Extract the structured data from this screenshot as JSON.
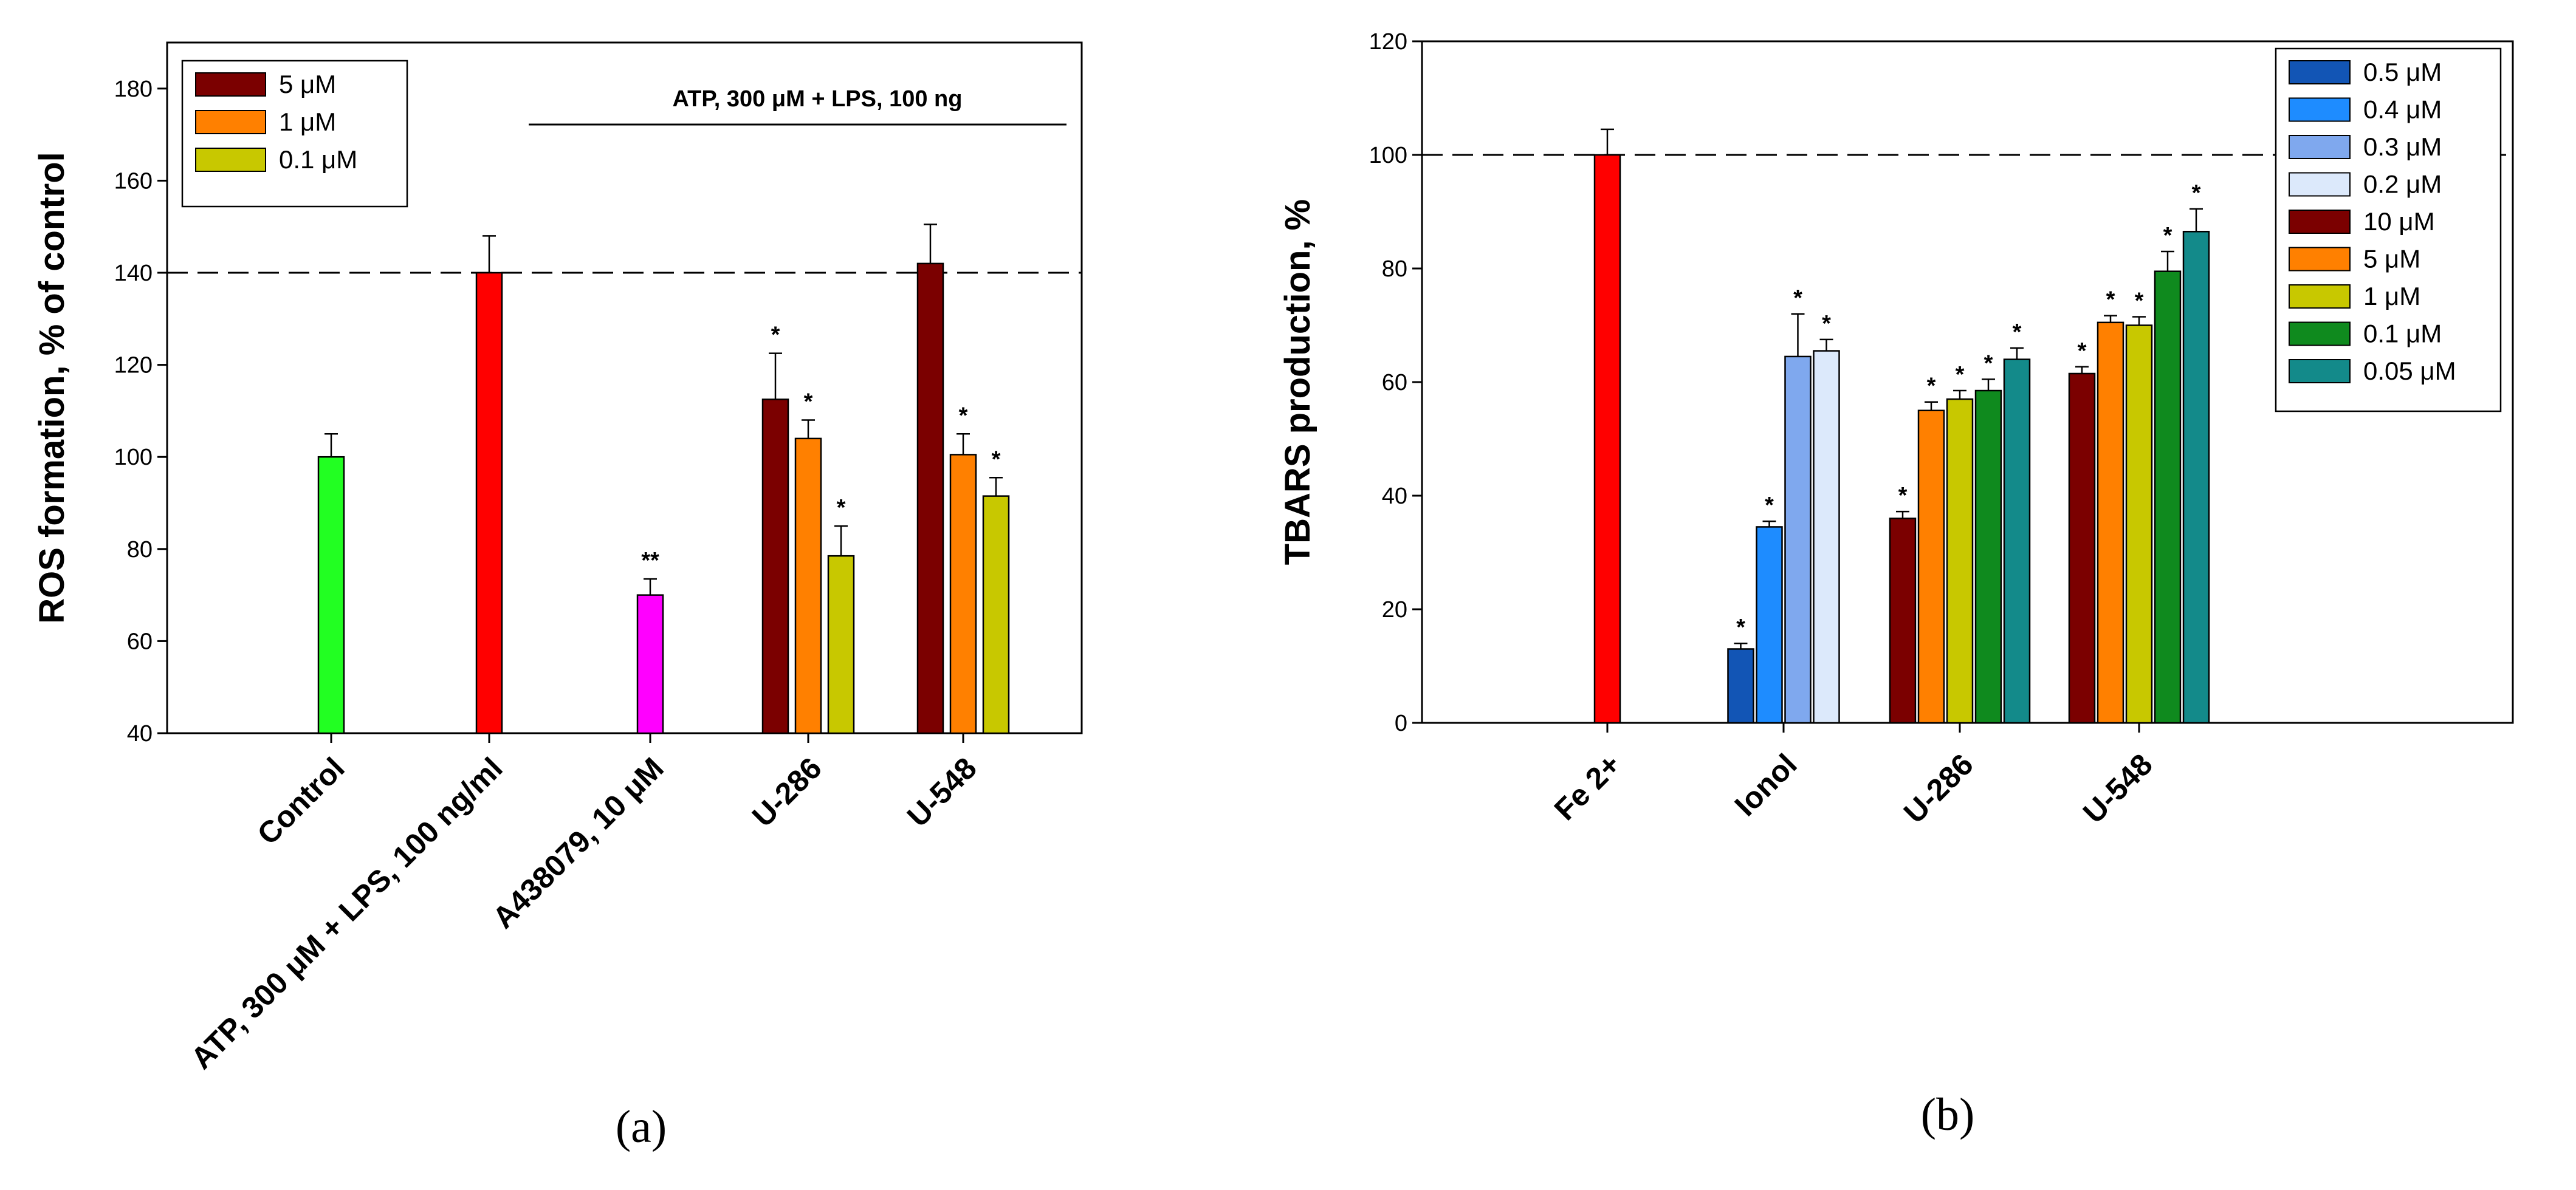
{
  "chart_data": [
    {
      "type": "bar",
      "panel_label": "(a)",
      "ylabel": "ROS formation, % of control",
      "xlabel": "",
      "ylim": [
        40,
        190
      ],
      "yticks": [
        40,
        60,
        80,
        100,
        120,
        140,
        160,
        180
      ],
      "reference_line": 140,
      "categories": [
        "Control",
        "ATP, 300 μM + LPS, 100 ng/ml",
        "A438079, 10 μM",
        "U-286",
        "U-548"
      ],
      "annotation": "ATP, 300 μM + LPS, 100 ng",
      "legend": [
        {
          "name": "5 μM",
          "color": "#7b0000"
        },
        {
          "name": "1 μM",
          "color": "#ff8000"
        },
        {
          "name": "0.1 μM",
          "color": "#c8c800"
        }
      ],
      "bars": [
        {
          "category": "Control",
          "series": "",
          "value": 100,
          "error": 5,
          "color": "#22ff22",
          "sig": ""
        },
        {
          "category": "ATP, 300 μM + LPS, 100 ng/ml",
          "series": "",
          "value": 140,
          "error": 8,
          "color": "#ff0000",
          "sig": ""
        },
        {
          "category": "A438079, 10 μM",
          "series": "",
          "value": 70,
          "error": 3.5,
          "color": "#ff00ff",
          "sig": "**"
        },
        {
          "category": "U-286",
          "series": "5 μM",
          "value": 112.5,
          "error": 10,
          "color": "#7b0000",
          "sig": "*"
        },
        {
          "category": "U-286",
          "series": "1 μM",
          "value": 104,
          "error": 4,
          "color": "#ff8000",
          "sig": "*"
        },
        {
          "category": "U-286",
          "series": "0.1 μM",
          "value": 78.5,
          "error": 6.5,
          "color": "#c8c800",
          "sig": "*"
        },
        {
          "category": "U-548",
          "series": "5 μM",
          "value": 142,
          "error": 8.5,
          "color": "#7b0000",
          "sig": ""
        },
        {
          "category": "U-548",
          "series": "1 μM",
          "value": 100.5,
          "error": 4.5,
          "color": "#ff8000",
          "sig": "*"
        },
        {
          "category": "U-548",
          "series": "0.1 μM",
          "value": 91.5,
          "error": 4,
          "color": "#c8c800",
          "sig": "*"
        }
      ]
    },
    {
      "type": "bar",
      "panel_label": "(b)",
      "ylabel": "TBARS production, %",
      "xlabel": "",
      "ylim": [
        0,
        120
      ],
      "yticks": [
        0,
        20,
        40,
        60,
        80,
        100,
        120
      ],
      "reference_line": 100,
      "categories": [
        "Fe 2+",
        "Ionol",
        "U-286",
        "U-548"
      ],
      "legend": [
        {
          "name": "0.5  μM",
          "color": "#1255b5"
        },
        {
          "name": "0.4  μM",
          "color": "#1e8cff"
        },
        {
          "name": "0.3  μM",
          "color": "#7fa8ee"
        },
        {
          "name": "0.2  μM",
          "color": "#dce9fb"
        },
        {
          "name": "10  μM",
          "color": "#7b0000"
        },
        {
          "name": "5  μM",
          "color": "#ff8000"
        },
        {
          "name": "1 μM",
          "color": "#c8c800"
        },
        {
          "name": "0.1  μM",
          "color": "#0f8a1e"
        },
        {
          "name": "0.05  μM",
          "color": "#138a8a"
        }
      ],
      "bars": [
        {
          "category": "Fe 2+",
          "series": "",
          "value": 100,
          "error": 4.5,
          "color": "#ff0000",
          "sig": ""
        },
        {
          "category": "Ionol",
          "series": "0.5  μM",
          "value": 13,
          "error": 1,
          "color": "#1255b5",
          "sig": "*"
        },
        {
          "category": "Ionol",
          "series": "0.4  μM",
          "value": 34.5,
          "error": 1,
          "color": "#1e8cff",
          "sig": "*"
        },
        {
          "category": "Ionol",
          "series": "0.3  μM",
          "value": 64.5,
          "error": 7.5,
          "color": "#7fa8ee",
          "sig": "*"
        },
        {
          "category": "Ionol",
          "series": "0.2  μM",
          "value": 65.5,
          "error": 2,
          "color": "#dce9fb",
          "sig": "*"
        },
        {
          "category": "U-286",
          "series": "10  μM",
          "value": 36,
          "error": 1.2,
          "color": "#7b0000",
          "sig": "*"
        },
        {
          "category": "U-286",
          "series": "5  μM",
          "value": 55,
          "error": 1.5,
          "color": "#ff8000",
          "sig": "*"
        },
        {
          "category": "U-286",
          "series": "1 μM",
          "value": 57,
          "error": 1.5,
          "color": "#c8c800",
          "sig": "*"
        },
        {
          "category": "U-286",
          "series": "0.1  μM",
          "value": 58.5,
          "error": 2,
          "color": "#0f8a1e",
          "sig": "*"
        },
        {
          "category": "U-286",
          "series": "0.05  μM",
          "value": 64,
          "error": 2,
          "color": "#138a8a",
          "sig": "*"
        },
        {
          "category": "U-548",
          "series": "10  μM",
          "value": 61.5,
          "error": 1.2,
          "color": "#7b0000",
          "sig": "*"
        },
        {
          "category": "U-548",
          "series": "5  μM",
          "value": 70.5,
          "error": 1.2,
          "color": "#ff8000",
          "sig": "*"
        },
        {
          "category": "U-548",
          "series": "1 μM",
          "value": 70,
          "error": 1.5,
          "color": "#c8c800",
          "sig": "*"
        },
        {
          "category": "U-548",
          "series": "0.1  μM",
          "value": 79.5,
          "error": 3.5,
          "color": "#0f8a1e",
          "sig": "*"
        },
        {
          "category": "U-548",
          "series": "0.05  μM",
          "value": 86.5,
          "error": 4,
          "color": "#138a8a",
          "sig": "*"
        }
      ]
    }
  ]
}
